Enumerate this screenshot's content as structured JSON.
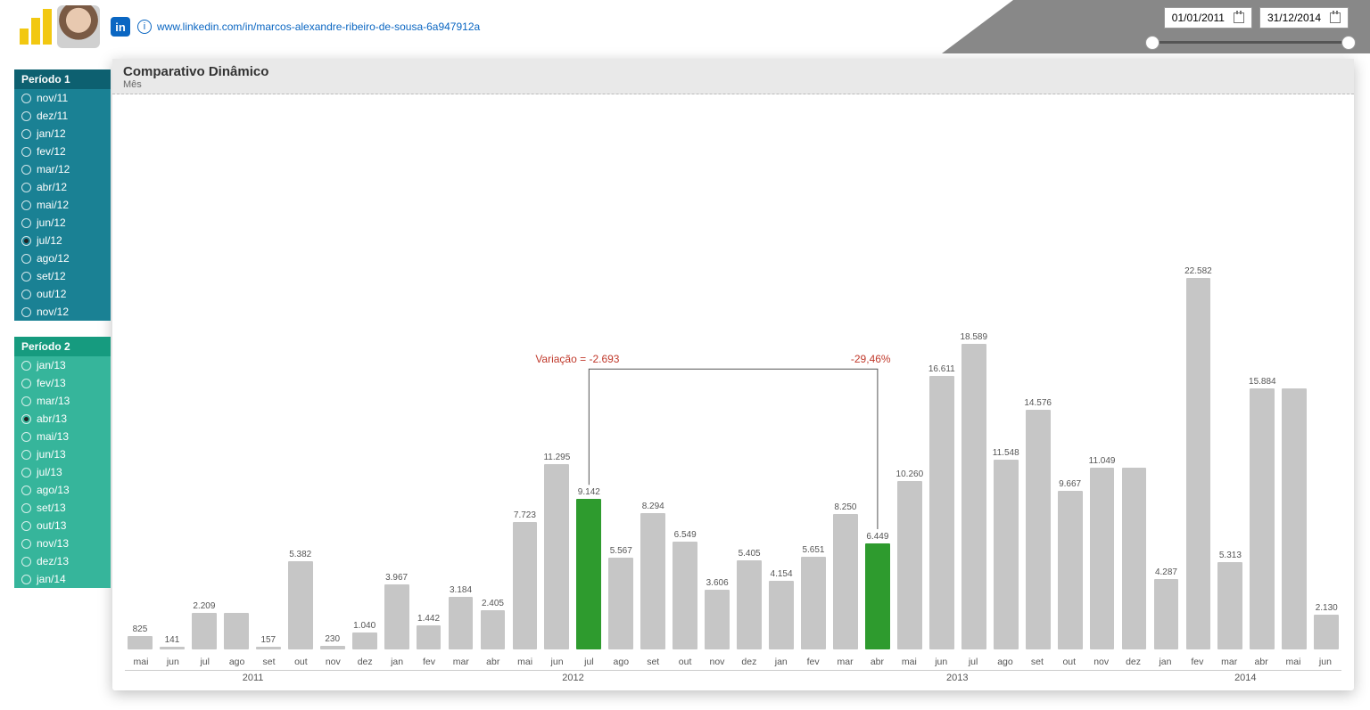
{
  "header": {
    "linkedin_url": "www.linkedin.com/in/marcos-alexandre-ribeiro-de-sousa-6a947912a",
    "linkedin_icon_label": "in"
  },
  "date_range": {
    "start": "01/01/2011",
    "end": "31/12/2014"
  },
  "period1": {
    "title": "Período 1",
    "bg_header": "#0d6070",
    "bg_item": "#1a8194",
    "items": [
      {
        "label": "nov/11",
        "selected": false
      },
      {
        "label": "dez/11",
        "selected": false
      },
      {
        "label": "jan/12",
        "selected": false
      },
      {
        "label": "fev/12",
        "selected": false
      },
      {
        "label": "mar/12",
        "selected": false
      },
      {
        "label": "abr/12",
        "selected": false
      },
      {
        "label": "mai/12",
        "selected": false
      },
      {
        "label": "jun/12",
        "selected": false
      },
      {
        "label": "jul/12",
        "selected": true
      },
      {
        "label": "ago/12",
        "selected": false
      },
      {
        "label": "set/12",
        "selected": false
      },
      {
        "label": "out/12",
        "selected": false
      },
      {
        "label": "nov/12",
        "selected": false
      }
    ]
  },
  "period2": {
    "title": "Período 2",
    "bg_header": "#169b7f",
    "bg_item": "#36b59b",
    "items": [
      {
        "label": "jan/13",
        "selected": false
      },
      {
        "label": "fev/13",
        "selected": false
      },
      {
        "label": "mar/13",
        "selected": false
      },
      {
        "label": "abr/13",
        "selected": true
      },
      {
        "label": "mai/13",
        "selected": false
      },
      {
        "label": "jun/13",
        "selected": false
      },
      {
        "label": "jul/13",
        "selected": false
      },
      {
        "label": "ago/13",
        "selected": false
      },
      {
        "label": "set/13",
        "selected": false
      },
      {
        "label": "out/13",
        "selected": false
      },
      {
        "label": "nov/13",
        "selected": false
      },
      {
        "label": "dez/13",
        "selected": false
      },
      {
        "label": "jan/14",
        "selected": false
      }
    ]
  },
  "chart": {
    "title": "Comparativo Dinâmico",
    "subtitle": "Mês",
    "variation_label": "Variação = -2.693",
    "variation_pct": "-29,46%",
    "variation_color": "#c0392b",
    "bar_color_default": "#c6c6c6",
    "bar_color_highlight": "#2e9b2e",
    "max_value": 22582,
    "years": [
      {
        "label": "2011",
        "span": 8
      },
      {
        "label": "2012",
        "span": 12
      },
      {
        "label": "2013",
        "span": 12
      },
      {
        "label": "2014",
        "span": 6
      }
    ],
    "bars": [
      {
        "month": "mai",
        "value": 825,
        "label": "825",
        "hl": false
      },
      {
        "month": "jun",
        "value": 141,
        "label": "141",
        "hl": false
      },
      {
        "month": "jul",
        "value": 2209,
        "label": "2.209",
        "hl": false
      },
      {
        "month": "ago",
        "value": 2209,
        "label": "",
        "hl": false
      },
      {
        "month": "set",
        "value": 157,
        "label": "157",
        "hl": false
      },
      {
        "month": "out",
        "value": 5382,
        "label": "5.382",
        "hl": false
      },
      {
        "month": "nov",
        "value": 230,
        "label": "230",
        "hl": false
      },
      {
        "month": "dez",
        "value": 1040,
        "label": "1.040",
        "hl": false
      },
      {
        "month": "jan",
        "value": 3967,
        "label": "3.967",
        "hl": false
      },
      {
        "month": "fev",
        "value": 1442,
        "label": "1.442",
        "hl": false
      },
      {
        "month": "mar",
        "value": 3184,
        "label": "3.184",
        "hl": false
      },
      {
        "month": "abr",
        "value": 2405,
        "label": "2.405",
        "hl": false
      },
      {
        "month": "mai",
        "value": 7723,
        "label": "7.723",
        "hl": false
      },
      {
        "month": "jun",
        "value": 11295,
        "label": "11.295",
        "hl": false
      },
      {
        "month": "jul",
        "value": 9142,
        "label": "9.142",
        "hl": true
      },
      {
        "month": "ago",
        "value": 5567,
        "label": "5.567",
        "hl": false
      },
      {
        "month": "set",
        "value": 8294,
        "label": "8.294",
        "hl": false
      },
      {
        "month": "out",
        "value": 6549,
        "label": "6.549",
        "hl": false
      },
      {
        "month": "nov",
        "value": 3606,
        "label": "3.606",
        "hl": false
      },
      {
        "month": "dez",
        "value": 5405,
        "label": "5.405",
        "hl": false
      },
      {
        "month": "jan",
        "value": 4154,
        "label": "4.154",
        "hl": false
      },
      {
        "month": "fev",
        "value": 5651,
        "label": "5.651",
        "hl": false
      },
      {
        "month": "mar",
        "value": 8250,
        "label": "8.250",
        "hl": false
      },
      {
        "month": "abr",
        "value": 6449,
        "label": "6.449",
        "hl": true
      },
      {
        "month": "mai",
        "value": 10260,
        "label": "10.260",
        "hl": false
      },
      {
        "month": "jun",
        "value": 16611,
        "label": "16.611",
        "hl": false
      },
      {
        "month": "jul",
        "value": 18589,
        "label": "18.589",
        "hl": false
      },
      {
        "month": "ago",
        "value": 11548,
        "label": "11.548",
        "hl": false
      },
      {
        "month": "set",
        "value": 14576,
        "label": "14.576",
        "hl": false
      },
      {
        "month": "out",
        "value": 9667,
        "label": "9.667",
        "hl": false
      },
      {
        "month": "nov",
        "value": 11049,
        "label": "11.049",
        "hl": false
      },
      {
        "month": "dez",
        "value": 11049,
        "label": "",
        "hl": false
      },
      {
        "month": "jan",
        "value": 4287,
        "label": "4.287",
        "hl": false
      },
      {
        "month": "fev",
        "value": 22582,
        "label": "22.582",
        "hl": false
      },
      {
        "month": "mar",
        "value": 5313,
        "label": "5.313",
        "hl": false
      },
      {
        "month": "abr",
        "value": 15884,
        "label": "15.884",
        "hl": false
      },
      {
        "month": "mai",
        "value": 15884,
        "label": "",
        "hl": false
      },
      {
        "month": "jun",
        "value": 2130,
        "label": "2.130",
        "hl": false
      }
    ]
  }
}
